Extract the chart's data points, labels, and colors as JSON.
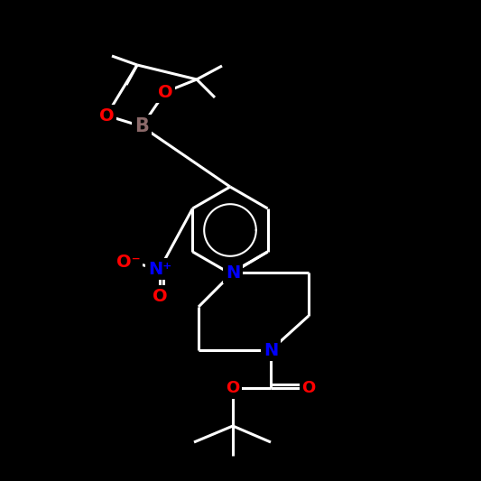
{
  "bg_color": "#000000",
  "bond_color": "#ffffff",
  "atom_colors": {
    "O": "#ff0000",
    "N": "#0000ff",
    "B": "#8b6969",
    "C": "#ffffff"
  },
  "font_size": 14,
  "bond_width": 2.0
}
